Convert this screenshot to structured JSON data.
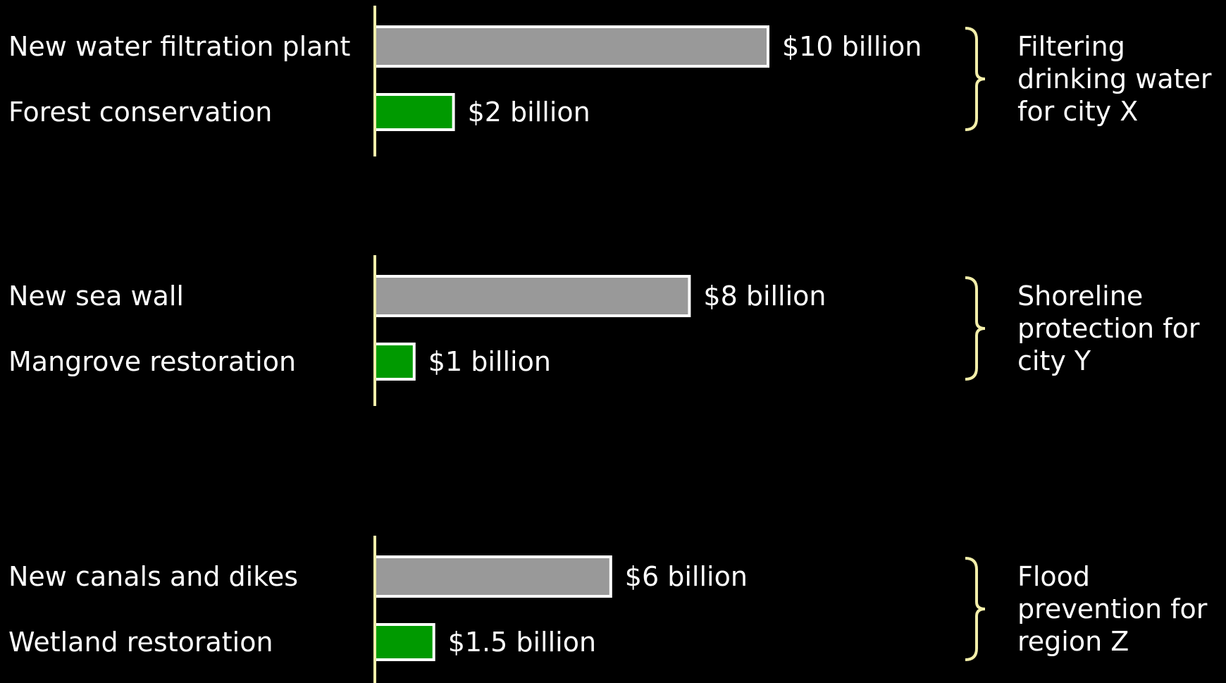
{
  "chart_data": {
    "type": "bar",
    "orientation": "horizontal",
    "unit": "billion USD",
    "colors": {
      "background": "#000000",
      "axis": "#f3efaa",
      "bar_border": "#ffffff",
      "conventional": "#999999",
      "nature_based": "#009a00",
      "text": "#ffffff"
    },
    "groups": [
      {
        "label_lines": [
          "Filtering",
          "drinking water",
          "for city X"
        ],
        "bars": [
          {
            "category": "New water filtration plant",
            "value": 10,
            "value_label": "$10 billion",
            "kind": "conventional"
          },
          {
            "category": "Forest conservation",
            "value": 2,
            "value_label": "$2 billion",
            "kind": "nature_based"
          }
        ]
      },
      {
        "label_lines": [
          "Shoreline",
          "protection for",
          "city Y"
        ],
        "bars": [
          {
            "category": "New sea wall",
            "value": 8,
            "value_label": "$8 billion",
            "kind": "conventional"
          },
          {
            "category": "Mangrove restoration",
            "value": 1,
            "value_label": "$1 billion",
            "kind": "nature_based"
          }
        ]
      },
      {
        "label_lines": [
          "Flood",
          "prevention for",
          "region Z"
        ],
        "bars": [
          {
            "category": "New canals and dikes",
            "value": 6,
            "value_label": "$6 billion",
            "kind": "conventional"
          },
          {
            "category": "Wetland restoration",
            "value": 1.5,
            "value_label": "$1.5 billion",
            "kind": "nature_based"
          }
        ]
      }
    ]
  }
}
